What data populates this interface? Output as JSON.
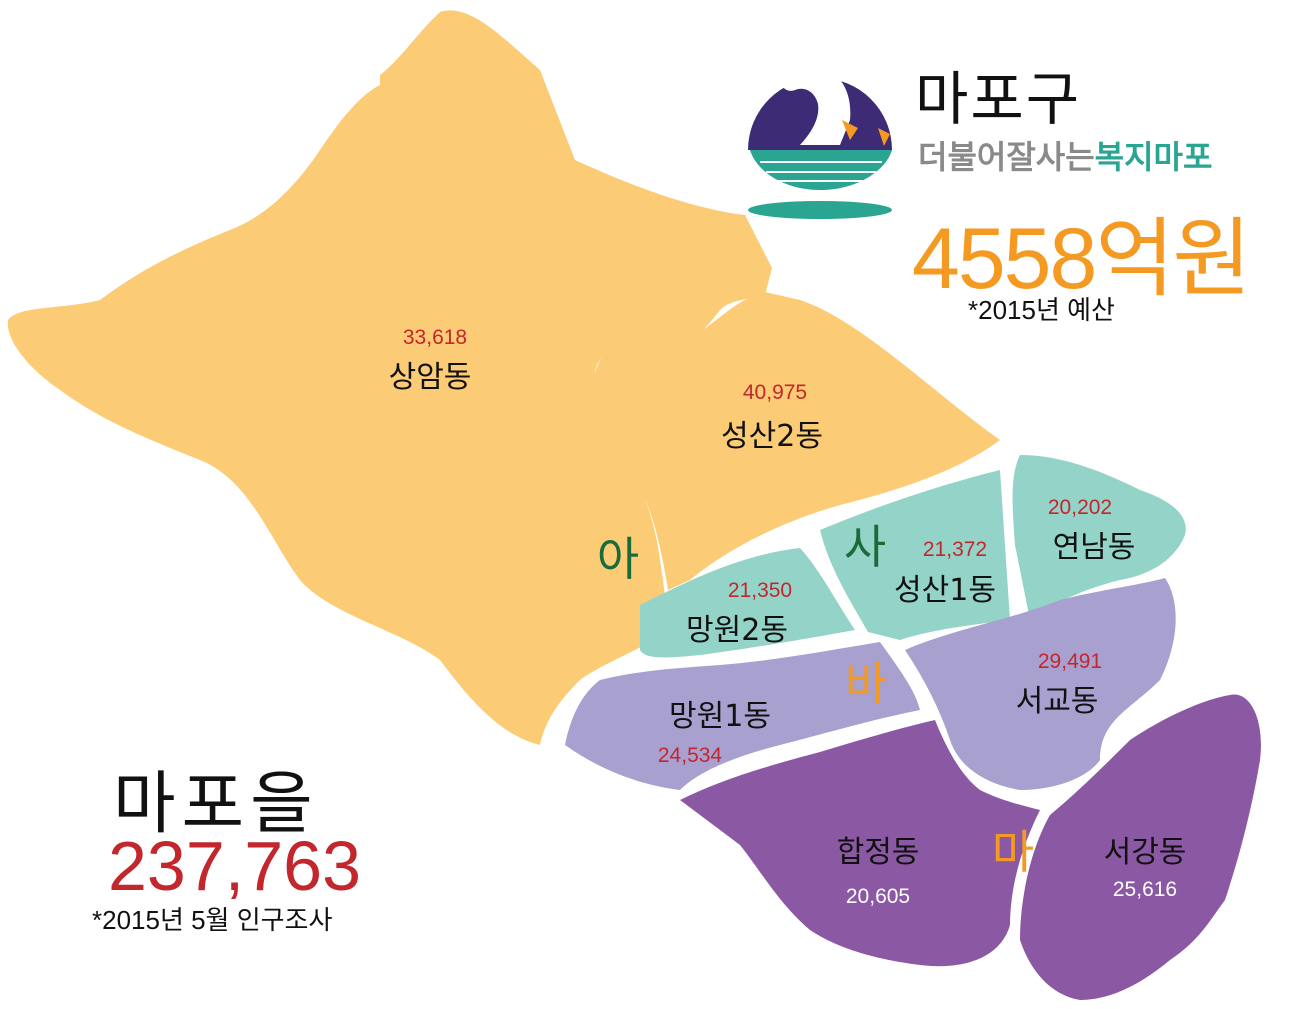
{
  "header": {
    "title": "마포구",
    "slogan_gray": "더불어잘사는",
    "slogan_green": "복지마포",
    "budget": "4558억원",
    "budget_note": "*2015년 예산"
  },
  "summary": {
    "district": "마포을",
    "population": "237,763",
    "population_note": "*2015년 5월 인구조사"
  },
  "zones": [
    {
      "letter": "아",
      "color": "#1b6b3a"
    },
    {
      "letter": "사",
      "color": "#1b6b3a"
    },
    {
      "letter": "바",
      "color": "#f49a22"
    },
    {
      "letter": "마",
      "color": "#f49a22"
    }
  ],
  "dongs": [
    {
      "name": "상암동",
      "population": "33,618"
    },
    {
      "name": "성산2동",
      "population": "40,975"
    },
    {
      "name": "연남동",
      "population": "20,202"
    },
    {
      "name": "성산1동",
      "population": "21,372"
    },
    {
      "name": "망원2동",
      "population": "21,350"
    },
    {
      "name": "서교동",
      "population": "29,491"
    },
    {
      "name": "망원1동",
      "population": "24,534"
    },
    {
      "name": "합정동",
      "population": "20,605"
    },
    {
      "name": "서강동",
      "population": "25,616"
    }
  ],
  "colors": {
    "zone_ah": "#fccb75",
    "zone_sa": "#94d3c8",
    "zone_ba": "#a8a0cf",
    "zone_ma": "#8b58a4",
    "number_red": "#c1272d",
    "logo_navy": "#3e2b76",
    "logo_teal": "#2aa592"
  }
}
